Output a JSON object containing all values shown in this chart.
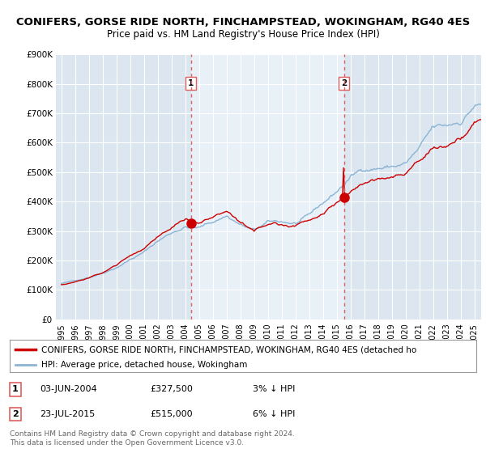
{
  "title1": "CONIFERS, GORSE RIDE NORTH, FINCHAMPSTEAD, WOKINGHAM, RG40 4ES",
  "title2": "Price paid vs. HM Land Registry's House Price Index (HPI)",
  "legend_label1": "CONIFERS, GORSE RIDE NORTH, FINCHAMPSTEAD, WOKINGHAM, RG40 4ES (detached ho",
  "legend_label2": "HPI: Average price, detached house, Wokingham",
  "footer1": "Contains HM Land Registry data © Crown copyright and database right 2024.",
  "footer2": "This data is licensed under the Open Government Licence v3.0.",
  "transactions": [
    {
      "label": "1",
      "date": "03-JUN-2004",
      "price": "£327,500",
      "hpi": "3% ↓ HPI",
      "year": 2004.42
    },
    {
      "label": "2",
      "date": "23-JUL-2015",
      "price": "£515,000",
      "hpi": "6% ↓ HPI",
      "year": 2015.55
    }
  ],
  "bg_color": "#ffffff",
  "plot_bg_color": "#dce6f0",
  "highlight_bg_color": "#e8f0f8",
  "grid_color": "#ffffff",
  "line_color_red": "#cc0000",
  "line_color_blue": "#8ab4d4",
  "vline_color": "#e06060",
  "marker_color_red": "#cc0000",
  "ylim": [
    0,
    900000
  ],
  "yticks": [
    0,
    100000,
    200000,
    300000,
    400000,
    500000,
    600000,
    700000,
    800000,
    900000
  ],
  "xlim_start": 1994.6,
  "xlim_end": 2025.5,
  "xtick_years": [
    1995,
    1996,
    1997,
    1998,
    1999,
    2000,
    2001,
    2002,
    2003,
    2004,
    2005,
    2006,
    2007,
    2008,
    2009,
    2010,
    2011,
    2012,
    2013,
    2014,
    2015,
    2016,
    2017,
    2018,
    2019,
    2020,
    2021,
    2022,
    2023,
    2024,
    2025
  ]
}
